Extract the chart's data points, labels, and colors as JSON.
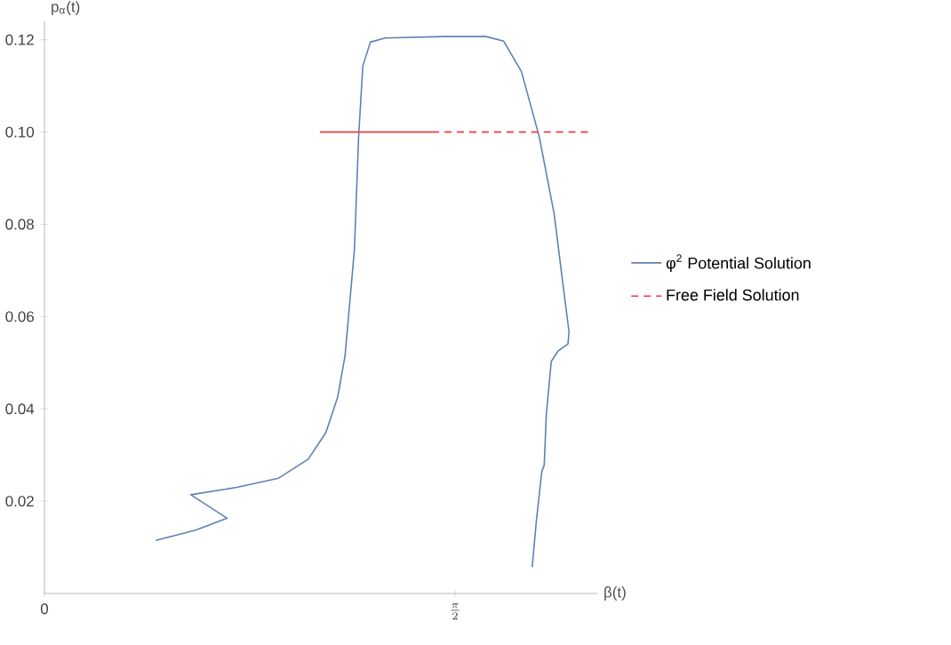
{
  "chart_data": {
    "type": "line",
    "xlabel": "β(t)",
    "ylabel": "p$_{α}$(t)",
    "xlim": [
      0,
      2.115
    ],
    "ylim": [
      0,
      0.124
    ],
    "xticks": [
      {
        "value": 0,
        "label": "0"
      },
      {
        "value": 1.5708,
        "label": "\\frac{\\pi}{2}"
      }
    ],
    "yticks": [
      {
        "value": 0.02,
        "label": "0.02"
      },
      {
        "value": 0.04,
        "label": "0.04"
      },
      {
        "value": 0.06,
        "label": "0.06"
      },
      {
        "value": 0.08,
        "label": "0.08"
      },
      {
        "value": 0.1,
        "label": "0.10"
      },
      {
        "value": 0.12,
        "label": "0.12"
      }
    ],
    "legend": "right",
    "grid": false,
    "marker": "none",
    "series": [
      {
        "name": "φ$^{2}$ Potential Solution",
        "color": "#5e81b5",
        "line_style": "solid",
        "x": [
          0.426,
          0.578,
          0.699,
          0.56,
          0.737,
          0.896,
          1.009,
          1.077,
          1.122,
          1.15,
          1.168,
          1.186,
          1.202,
          1.218,
          1.247,
          1.304,
          1.531,
          1.689,
          1.757,
          1.825,
          1.893,
          1.95,
          1.984,
          2.007,
          2.003,
          1.966,
          1.939,
          1.92,
          1.912,
          1.903,
          1.882,
          1.866
        ],
        "values": [
          0.0115,
          0.0137,
          0.0163,
          0.0214,
          0.023,
          0.025,
          0.0291,
          0.0349,
          0.0426,
          0.0515,
          0.063,
          0.0746,
          0.099,
          0.1143,
          0.1195,
          0.1204,
          0.1207,
          0.1207,
          0.1197,
          0.1131,
          0.099,
          0.0823,
          0.0669,
          0.0567,
          0.0541,
          0.0526,
          0.0503,
          0.0387,
          0.0278,
          0.0265,
          0.0157,
          0.0057
        ]
      },
      {
        "color": "#f03c3c",
        "line_style": "solid",
        "x": [
          1.054,
          1.483
        ],
        "values": [
          0.1,
          0.1
        ]
      },
      {
        "name": "Free Field Solution",
        "color": "#f03c3c",
        "line_style": "dashed",
        "x": [
          1.483,
          2.088
        ],
        "values": [
          0.1,
          0.1
        ]
      }
    ]
  }
}
